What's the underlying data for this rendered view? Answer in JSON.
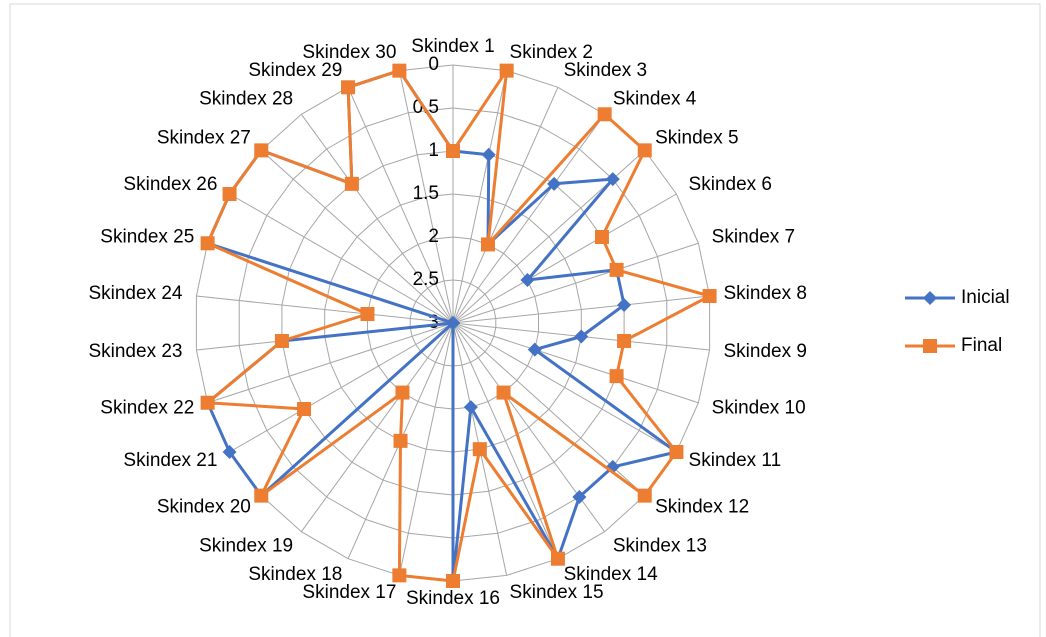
{
  "chart_data": {
    "type": "radar",
    "categories": [
      "Skindex 1",
      "Skindex 2",
      "Skindex 3",
      "Skindex 4",
      "Skindex 5",
      "Skindex 6",
      "Skindex 7",
      "Skindex 8",
      "Skindex 9",
      "Skindex 10",
      "Skindex 11",
      "Skindex 12",
      "Skindex 13",
      "Skindex 14",
      "Skindex 15",
      "Skindex 16",
      "Skindex 17",
      "Skindex 18",
      "Skindex 19",
      "Skindex 20",
      "Skindex 21",
      "Skindex 22",
      "Skindex 23",
      "Skindex 24",
      "Skindex 25",
      "Skindex 26",
      "Skindex 27",
      "Skindex 28",
      "Skindex 29",
      "Skindex 30"
    ],
    "series": [
      {
        "name": "Inicial",
        "color": "#4472c4",
        "marker": "diamond",
        "values": [
          1,
          1,
          2,
          1,
          0.5,
          2,
          1,
          1,
          1.5,
          2,
          0,
          0.5,
          0.5,
          0,
          2,
          0,
          3,
          3,
          3,
          0,
          0,
          0,
          1,
          3,
          0,
          0,
          0,
          1,
          0,
          0
        ]
      },
      {
        "name": "Final",
        "color": "#ed7d31",
        "marker": "square",
        "values": [
          1,
          0,
          2,
          0,
          0,
          1,
          1,
          0,
          1,
          1,
          0,
          0,
          2,
          0,
          1.5,
          0,
          0,
          1.5,
          2,
          0,
          1,
          0,
          1,
          2,
          0,
          0,
          0,
          1,
          0,
          0
        ]
      }
    ],
    "ylim": [
      0,
      3
    ],
    "reversed": true,
    "yticks": [
      0,
      0.5,
      1,
      1.5,
      2,
      2.5,
      3
    ],
    "grid": true,
    "legend": "right"
  }
}
